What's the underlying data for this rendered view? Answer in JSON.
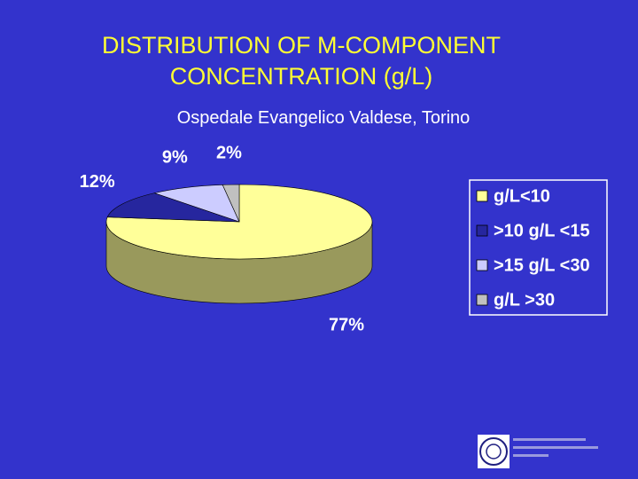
{
  "chart_data": {
    "type": "pie3d",
    "title": "DISTRIBUTION OF M-COMPONENT CONCENTRATION (g/L)",
    "subtitle": "Ospedale Evangelico Valdese, Torino",
    "categories": [
      "g/L<10",
      ">10 g/L <15",
      ">15 g/L <30",
      "g/L >30"
    ],
    "values": [
      77,
      12,
      9,
      2
    ],
    "value_labels": [
      "77%",
      "12%",
      "9%",
      "2%"
    ],
    "colors": [
      "#ffff99",
      "#26269e",
      "#ccccff",
      "#c0c0c0"
    ],
    "legend": "right"
  }
}
